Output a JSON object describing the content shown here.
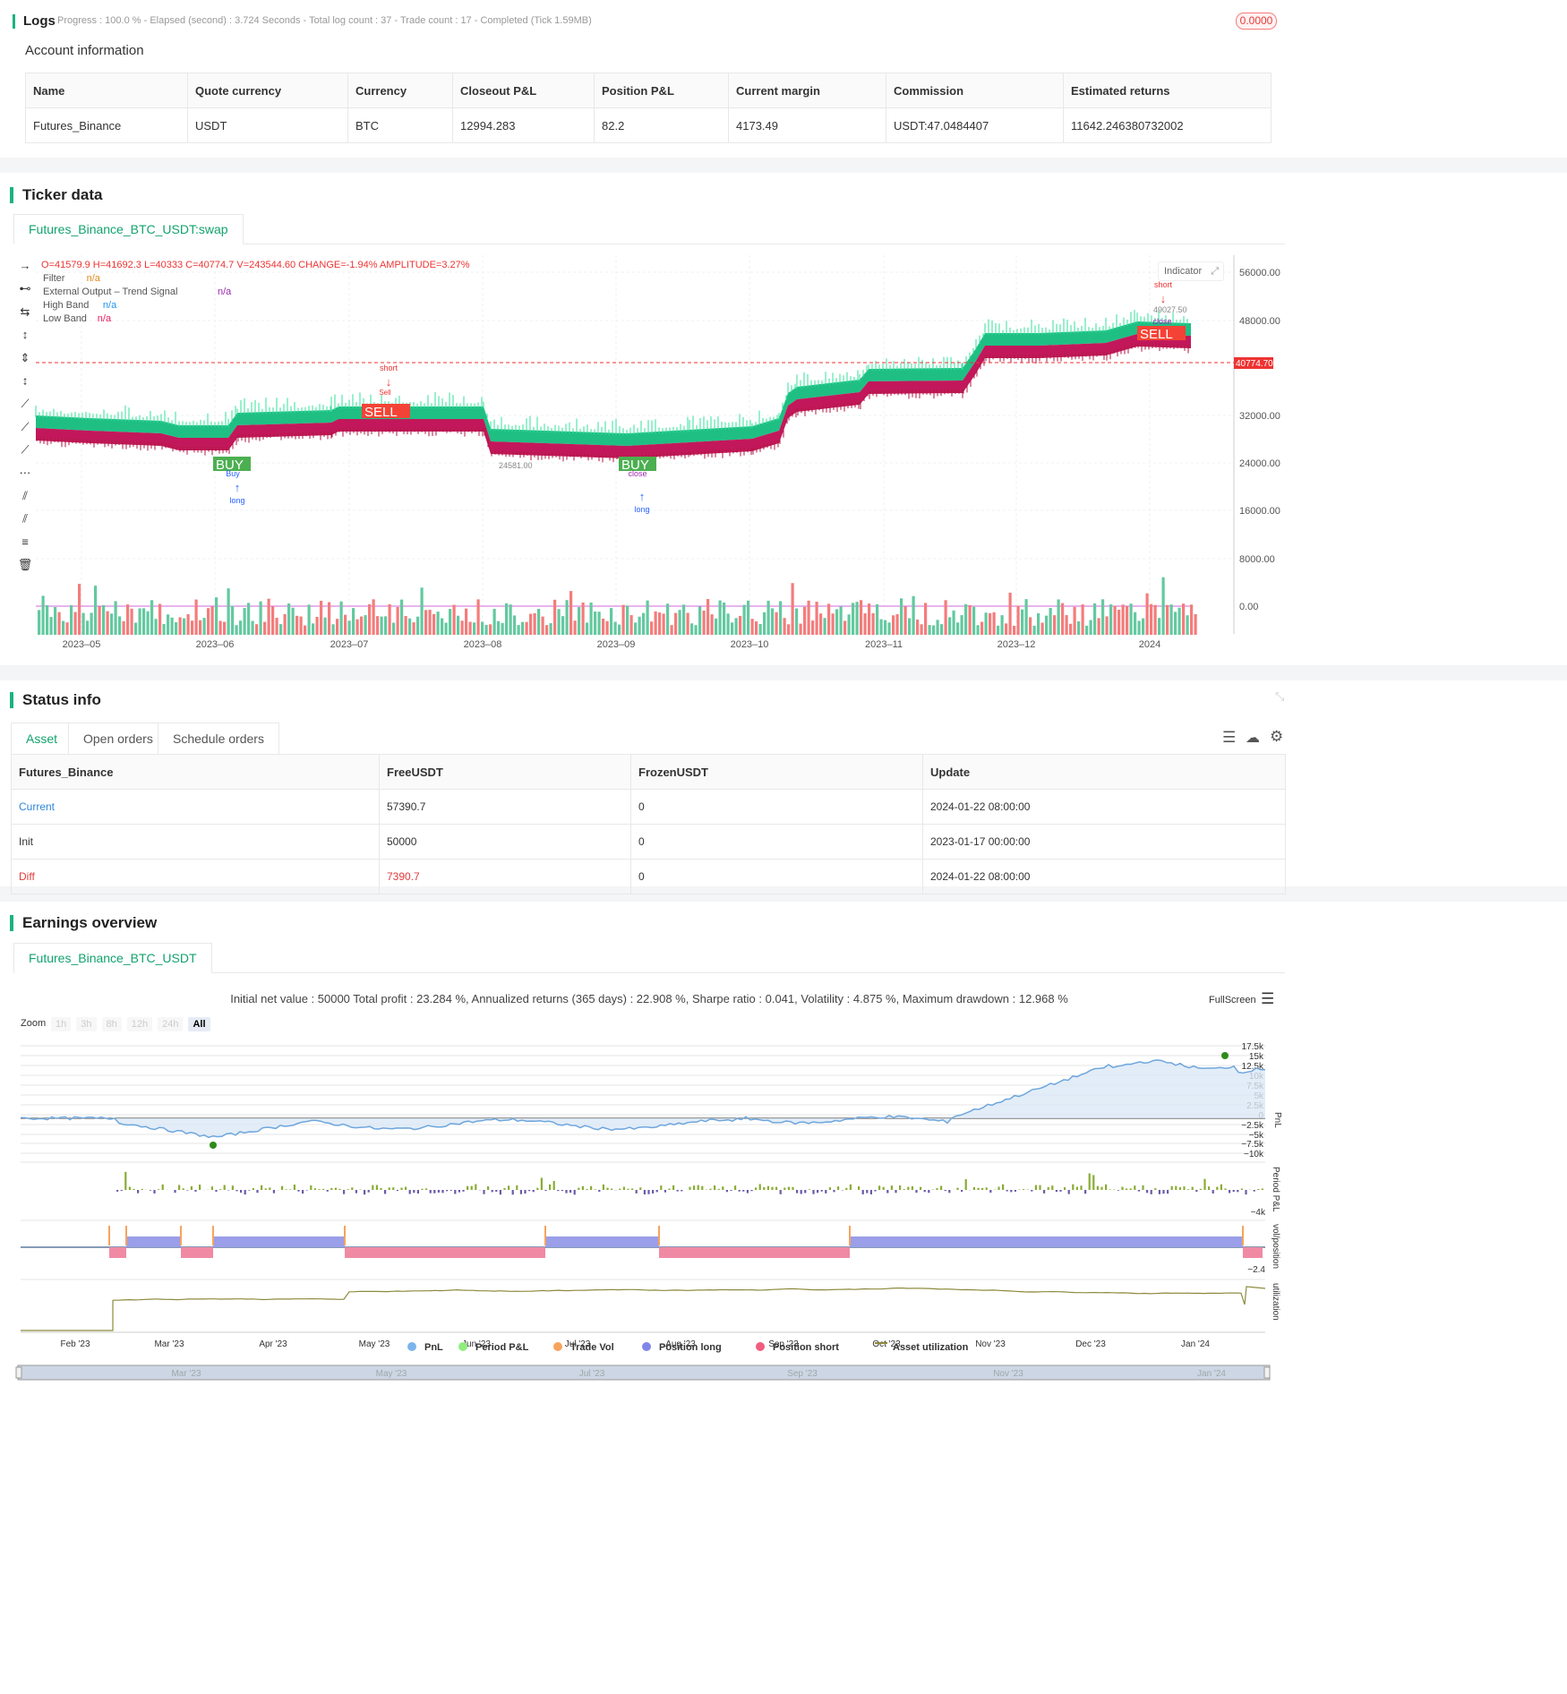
{
  "logs": {
    "title": "Logs",
    "status": "Progress : 100.0 % - Elapsed (second) : 3.724  Seconds - Total log count : 37 - Trade count : 17 - Completed (Tick 1.59MB)",
    "badge": "0.0000"
  },
  "account": {
    "title": "Account information",
    "headers": [
      "Name",
      "Quote currency",
      "Currency",
      "Closeout P&L",
      "Position P&L",
      "Current margin",
      "Commission",
      "Estimated returns"
    ],
    "row": [
      "Futures_Binance",
      "USDT",
      "BTC",
      "12994.283",
      "82.2",
      "4173.49",
      "USDT:47.0484407",
      "11642.246380732002"
    ]
  },
  "ticker": {
    "title": "Ticker data",
    "tab": "Futures_Binance_BTC_USDT:swap",
    "indicator_btn": "Indicator",
    "ohlc": {
      "o": "O=41579.9",
      "h": "H=41692.3",
      "l": "L=40333",
      "c": "C=40774.7",
      "v": "V=243544.60",
      "change": "CHANGE=-1.94%",
      "amp": "AMPLITUDE=3.27%"
    },
    "legend": [
      {
        "name": "Filter",
        "val": "n/a",
        "color": "#e08a1e"
      },
      {
        "name": "External Output – Trend Signal",
        "val": "n/a",
        "color": "#9c27b0"
      },
      {
        "name": "High Band",
        "val": "n/a",
        "color": "#2196f3"
      },
      {
        "name": "Low Band",
        "val": "n/a",
        "color": "#e91e63"
      }
    ],
    "y_ticks": [
      "56000.00",
      "48000.00",
      "32000.00",
      "24000.00",
      "16000.00",
      "8000.00",
      "0.00"
    ],
    "x_ticks": [
      "2023–05",
      "2023–06",
      "2023–07",
      "2023–08",
      "2023–09",
      "2023–10",
      "2023–11",
      "2023–12",
      "2024"
    ],
    "price_label": "40774.70",
    "low_label": "24581.00",
    "high_label": "49027.50",
    "signals": {
      "buy": "BUY",
      "sell": "SELL",
      "long": "long",
      "short": "short",
      "buy_small": "Buy",
      "sell_small": "Sell",
      "close": "close",
      "one": "1"
    }
  },
  "status": {
    "title": "Status info",
    "tabs": [
      "Asset",
      "Open orders",
      "Schedule orders"
    ],
    "headers": [
      "Futures_Binance",
      "FreeUSDT",
      "FrozenUSDT",
      "Update"
    ],
    "rows": [
      [
        "Current",
        "57390.7",
        "0",
        "2024-01-22 08:00:00"
      ],
      [
        "Init",
        "50000",
        "0",
        "2023-01-17 00:00:00"
      ],
      [
        "Diff",
        "7390.7",
        "0",
        "2024-01-22 08:00:00"
      ]
    ]
  },
  "earnings": {
    "title": "Earnings overview",
    "tab": "Futures_Binance_BTC_USDT",
    "summary": "Initial net value : 50000 Total profit : 23.284 %, Annualized returns (365 days) : 22.908 %, Sharpe ratio : 0.041, Volatility : 4.875 %, Maximum drawdown : 12.968 %",
    "fullscreen": "FullScreen",
    "zoom_label": "Zoom",
    "zoom": [
      "1h",
      "3h",
      "8h",
      "12h",
      "24h",
      "All"
    ],
    "pnl_ticks": [
      "17.5k",
      "15k",
      "12.5k",
      "10k",
      "7.5k",
      "5k",
      "2.5k",
      "0",
      "−2.5k",
      "−5k",
      "−7.5k",
      "−10k"
    ],
    "axis_names": [
      "PnL",
      "Period P&L",
      "vol/position",
      "utilization"
    ],
    "period_tick": "−4k",
    "pos_tick": "−2.4",
    "months": [
      "Feb '23",
      "Mar '23",
      "Apr '23",
      "May '23",
      "Jun '23",
      "Jul '23",
      "Aug '23",
      "Sep '23",
      "Oct '23",
      "Nov '23",
      "Dec '23",
      "Jan '24"
    ],
    "nav_months": [
      "Mar '23",
      "May '23",
      "Jul '23",
      "Sep '23",
      "Nov '23",
      "Jan '24"
    ],
    "legend": [
      {
        "name": "PnL",
        "color": "#7cb5ec"
      },
      {
        "name": "Period P&L",
        "color": "#90ed7d"
      },
      {
        "name": "Trade Vol",
        "color": "#f7a35c"
      },
      {
        "name": "Position long",
        "color": "#8085e9"
      },
      {
        "name": "Position short",
        "color": "#f15c80"
      },
      {
        "name": "Asset utilization",
        "color": "#8d8a3d"
      }
    ]
  }
}
